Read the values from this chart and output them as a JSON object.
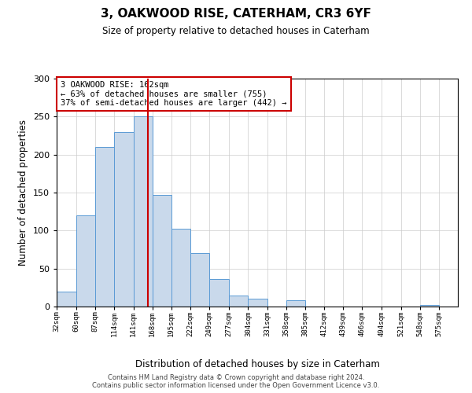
{
  "title": "3, OAKWOOD RISE, CATERHAM, CR3 6YF",
  "subtitle": "Size of property relative to detached houses in Caterham",
  "xlabel": "Distribution of detached houses by size in Caterham",
  "ylabel": "Number of detached properties",
  "bin_labels": [
    "32sqm",
    "60sqm",
    "87sqm",
    "114sqm",
    "141sqm",
    "168sqm",
    "195sqm",
    "222sqm",
    "249sqm",
    "277sqm",
    "304sqm",
    "331sqm",
    "358sqm",
    "385sqm",
    "412sqm",
    "439sqm",
    "466sqm",
    "494sqm",
    "521sqm",
    "548sqm",
    "575sqm"
  ],
  "bin_edges": [
    32,
    60,
    87,
    114,
    141,
    168,
    195,
    222,
    249,
    277,
    304,
    331,
    358,
    385,
    412,
    439,
    466,
    494,
    521,
    548,
    575
  ],
  "bar_heights": [
    20,
    120,
    210,
    230,
    250,
    147,
    102,
    70,
    36,
    14,
    10,
    0,
    8,
    0,
    0,
    0,
    0,
    0,
    0,
    2
  ],
  "bar_color": "#c9d9eb",
  "bar_edge_color": "#5b9bd5",
  "property_value": 162,
  "vline_color": "#cc0000",
  "annotation_title": "3 OAKWOOD RISE: 162sqm",
  "annotation_line1": "← 63% of detached houses are smaller (755)",
  "annotation_line2": "37% of semi-detached houses are larger (442) →",
  "annotation_box_color": "#ffffff",
  "annotation_box_edge": "#cc0000",
  "ylim": [
    0,
    300
  ],
  "yticks": [
    0,
    50,
    100,
    150,
    200,
    250,
    300
  ],
  "background_color": "#ffffff",
  "footer_line1": "Contains HM Land Registry data © Crown copyright and database right 2024.",
  "footer_line2": "Contains public sector information licensed under the Open Government Licence v3.0."
}
